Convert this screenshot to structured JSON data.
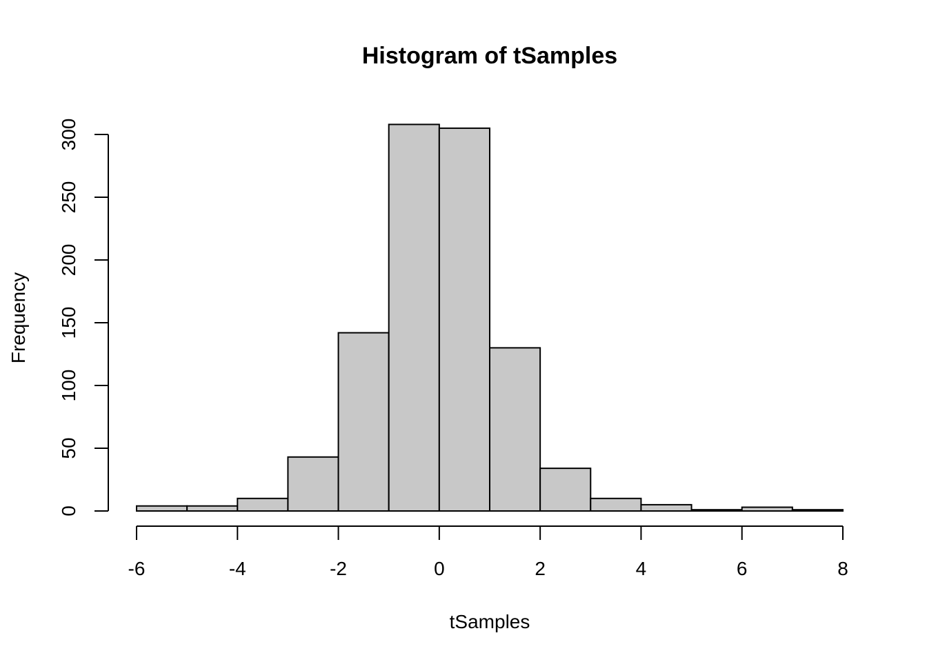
{
  "chart_data": {
    "type": "bar",
    "title": "Histogram of tSamples",
    "xlabel": "tSamples",
    "ylabel": "Frequency",
    "bins": [
      {
        "start": -6,
        "end": -5,
        "count": 4
      },
      {
        "start": -5,
        "end": -4,
        "count": 4
      },
      {
        "start": -4,
        "end": -3,
        "count": 10
      },
      {
        "start": -3,
        "end": -2,
        "count": 43
      },
      {
        "start": -2,
        "end": -1,
        "count": 142
      },
      {
        "start": -1,
        "end": 0,
        "count": 308
      },
      {
        "start": 0,
        "end": 1,
        "count": 305
      },
      {
        "start": 1,
        "end": 2,
        "count": 130
      },
      {
        "start": 2,
        "end": 3,
        "count": 34
      },
      {
        "start": 3,
        "end": 4,
        "count": 10
      },
      {
        "start": 4,
        "end": 5,
        "count": 5
      },
      {
        "start": 5,
        "end": 6,
        "count": 1
      },
      {
        "start": 6,
        "end": 7,
        "count": 3
      },
      {
        "start": 7,
        "end": 8,
        "count": 1
      }
    ],
    "xlim": [
      -6,
      8
    ],
    "ylim": [
      0,
      300
    ],
    "x_ticks": [
      -6,
      -4,
      -2,
      0,
      2,
      4,
      6,
      8
    ],
    "y_ticks": [
      0,
      50,
      100,
      150,
      200,
      250,
      300
    ],
    "x_tick_labels": [
      "-6",
      "-4",
      "-2",
      "0",
      "2",
      "4",
      "6",
      "8"
    ],
    "y_tick_labels": [
      "0",
      "50",
      "100",
      "150",
      "200",
      "250",
      "300"
    ],
    "bar_color": "#c8c8c8",
    "edge_color": "#000000",
    "grid": false
  }
}
